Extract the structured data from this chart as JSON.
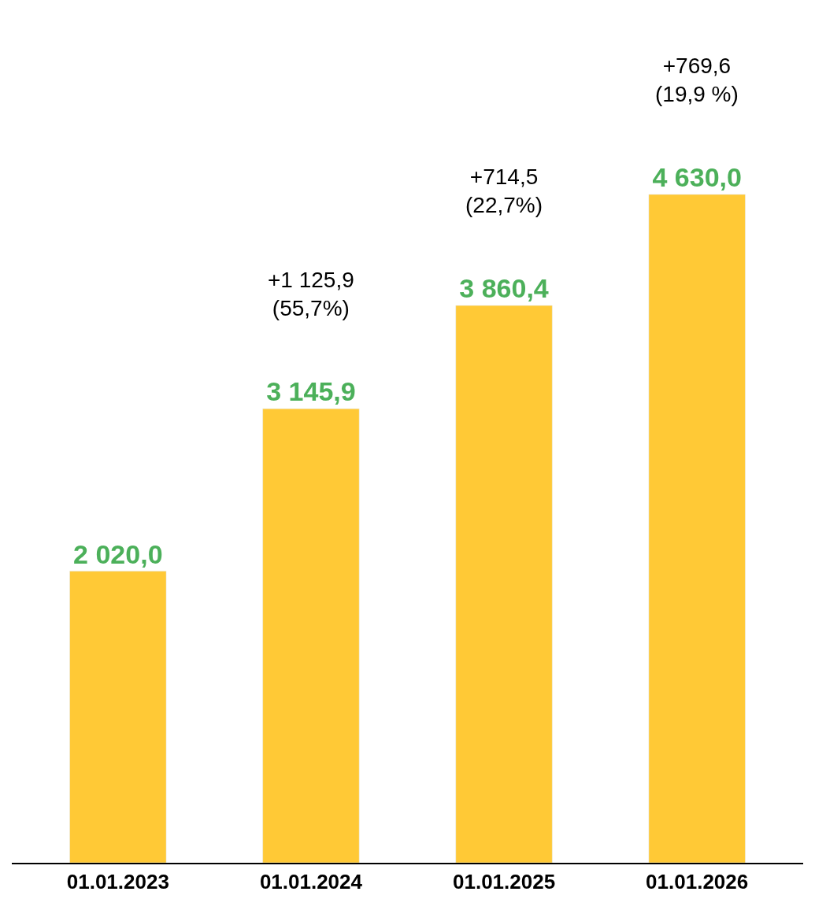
{
  "chart_data": {
    "type": "bar",
    "categories": [
      "01.01.2023",
      "01.01.2024",
      "01.01.2025",
      "01.01.2026"
    ],
    "values": [
      2020.0,
      3145.9,
      3860.4,
      4630.0
    ],
    "color": "#ffc936",
    "value_labels": [
      "2 020,0",
      "3 145,9",
      "3 860,4",
      "4 630,0"
    ],
    "annotations": [
      "+1 125,9\n(55,7%)",
      "+714,5\n(22,7%)",
      "+769,6\n(19,9 %)"
    ],
    "legend": false
  }
}
